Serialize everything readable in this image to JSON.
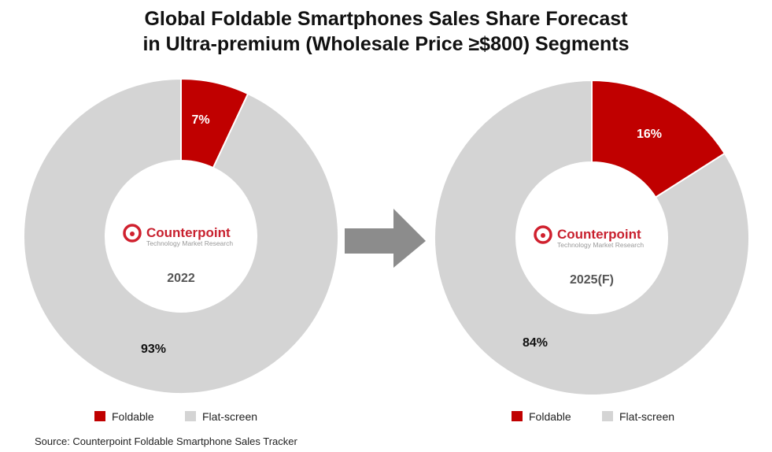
{
  "chart_data": [
    {
      "type": "pie",
      "title": "Global Foldable Smartphones Sales Share Forecast in Ultra-premium (Wholesale Price ≥$800) Segments",
      "center_label": "2022",
      "categories": [
        "Foldable",
        "Flat-screen"
      ],
      "values": [
        7,
        93
      ],
      "labels": [
        "7%",
        "93%"
      ],
      "colors": [
        "#c00000",
        "#d4d4d4"
      ],
      "legend": "bottom"
    },
    {
      "type": "pie",
      "center_label": "2025(F)",
      "categories": [
        "Foldable",
        "Flat-screen"
      ],
      "values": [
        16,
        84
      ],
      "labels": [
        "16%",
        "84%"
      ],
      "colors": [
        "#c00000",
        "#d4d4d4"
      ],
      "legend": "bottom"
    }
  ],
  "title_line1": "Global Foldable Smartphones Sales Share Forecast",
  "title_line2": "in Ultra-premium (Wholesale Price ≥$800) Segments",
  "logo": {
    "name": "Counterpoint",
    "tagline": "Technology Market Research"
  },
  "source": "Source: Counterpoint Foldable Smartphone Sales Tracker",
  "arrow_color": "#8c8c8c"
}
